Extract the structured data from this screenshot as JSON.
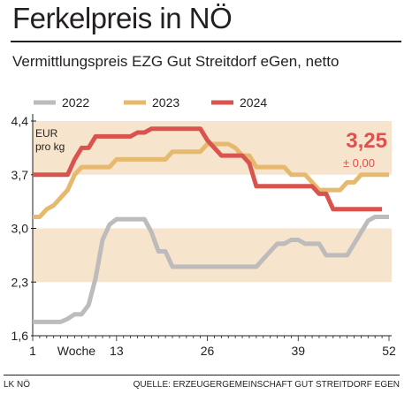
{
  "title": "Ferkelpreis in NÖ",
  "subtitle": "Vermittlungspreis EZG Gut Streitdorf eGen, netto",
  "footer": {
    "left": "LK NÖ",
    "right": "QUELLE: ERZEUGERGEMEINSCHAFT GUT STREITDORF EGEN"
  },
  "colors": {
    "band": "#f7e4cc",
    "s2022": "#bdbbbb",
    "s2023": "#e6b96e",
    "s2024": "#d9534f",
    "accent": "#d9534f"
  },
  "chart_data": {
    "type": "line",
    "title": "Ferkelpreis in NÖ",
    "subtitle": "Vermittlungspreis EZG Gut Streitdorf eGen, netto",
    "unit_label": "EUR\npro kg",
    "xlabel": "Woche",
    "xlim": [
      1,
      52
    ],
    "ylim": [
      1.6,
      4.4
    ],
    "x_ticks": [
      1,
      13,
      26,
      39,
      52
    ],
    "y_ticks": [
      {
        "value": 1.6,
        "label": "1,6"
      },
      {
        "value": 2.3,
        "label": "2,3"
      },
      {
        "value": 3.0,
        "label": "3,0"
      },
      {
        "value": 3.7,
        "label": "3,7"
      },
      {
        "value": 4.4,
        "label": "4,4"
      }
    ],
    "bands": [
      [
        3.7,
        4.4
      ],
      [
        2.3,
        3.0
      ]
    ],
    "legend_position": "top",
    "callout": {
      "value": "3,25",
      "change": "± 0,00"
    },
    "series": [
      {
        "name": "2022",
        "points": [
          [
            1,
            1.78
          ],
          [
            5,
            1.78
          ],
          [
            6,
            1.82
          ],
          [
            7,
            1.88
          ],
          [
            8,
            1.88
          ],
          [
            9,
            2.0
          ],
          [
            10,
            2.35
          ],
          [
            11,
            2.85
          ],
          [
            12,
            3.05
          ],
          [
            13,
            3.12
          ],
          [
            14,
            3.12
          ],
          [
            16,
            3.12
          ],
          [
            17,
            3.12
          ],
          [
            18,
            2.95
          ],
          [
            19,
            2.7
          ],
          [
            20,
            2.7
          ],
          [
            21,
            2.5
          ],
          [
            22,
            2.5
          ],
          [
            25,
            2.5
          ],
          [
            27,
            2.5
          ],
          [
            30,
            2.5
          ],
          [
            33,
            2.5
          ],
          [
            34,
            2.6
          ],
          [
            35,
            2.7
          ],
          [
            36,
            2.8
          ],
          [
            37,
            2.8
          ],
          [
            38,
            2.85
          ],
          [
            39,
            2.85
          ],
          [
            40,
            2.8
          ],
          [
            42,
            2.8
          ],
          [
            43,
            2.65
          ],
          [
            46,
            2.65
          ],
          [
            47,
            2.8
          ],
          [
            48,
            2.95
          ],
          [
            49,
            3.1
          ],
          [
            50,
            3.15
          ],
          [
            52,
            3.15
          ]
        ]
      },
      {
        "name": "2023",
        "points": [
          [
            1,
            3.15
          ],
          [
            2,
            3.15
          ],
          [
            3,
            3.25
          ],
          [
            4,
            3.3
          ],
          [
            5,
            3.4
          ],
          [
            6,
            3.5
          ],
          [
            7,
            3.7
          ],
          [
            8,
            3.8
          ],
          [
            12,
            3.8
          ],
          [
            13,
            3.9
          ],
          [
            20,
            3.9
          ],
          [
            21,
            4.0
          ],
          [
            25,
            4.0
          ],
          [
            26,
            4.1
          ],
          [
            29,
            4.1
          ],
          [
            30,
            4.05
          ],
          [
            31,
            3.95
          ],
          [
            32,
            3.95
          ],
          [
            33,
            3.8
          ],
          [
            37,
            3.8
          ],
          [
            38,
            3.7
          ],
          [
            40,
            3.7
          ],
          [
            41,
            3.6
          ],
          [
            42,
            3.5
          ],
          [
            45,
            3.5
          ],
          [
            46,
            3.6
          ],
          [
            47,
            3.6
          ],
          [
            48,
            3.7
          ],
          [
            52,
            3.7
          ]
        ]
      },
      {
        "name": "2024",
        "points": [
          [
            1,
            3.7
          ],
          [
            6,
            3.7
          ],
          [
            7,
            3.9
          ],
          [
            8,
            4.05
          ],
          [
            9,
            4.05
          ],
          [
            10,
            4.2
          ],
          [
            14,
            4.2
          ],
          [
            15,
            4.2
          ],
          [
            16,
            4.25
          ],
          [
            17,
            4.25
          ],
          [
            18,
            4.3
          ],
          [
            24,
            4.3
          ],
          [
            25,
            4.3
          ],
          [
            26,
            4.15
          ],
          [
            27,
            4.05
          ],
          [
            28,
            3.95
          ],
          [
            31,
            3.95
          ],
          [
            32,
            3.85
          ],
          [
            33,
            3.55
          ],
          [
            41,
            3.55
          ],
          [
            42,
            3.45
          ],
          [
            43,
            3.45
          ],
          [
            44,
            3.25
          ],
          [
            51,
            3.25
          ]
        ]
      }
    ]
  }
}
